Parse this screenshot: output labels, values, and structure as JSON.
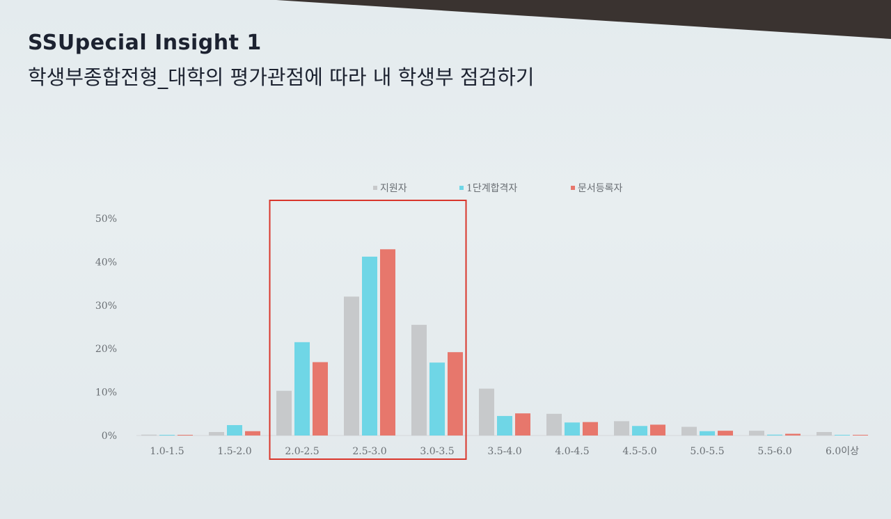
{
  "header": {
    "title": "SSUpecial Insight 1",
    "subtitle": "학생부종합전형_대학의 평가관점에 따라 내 학생부 점검하기"
  },
  "chart_data": {
    "type": "bar",
    "categories": [
      "1.0-1.5",
      "1.5-2.0",
      "2.0-2.5",
      "2.5-3.0",
      "3.0-3.5",
      "3.5-4.0",
      "4.0-4.5",
      "4.5-5.0",
      "5.0-5.5",
      "5.5-6.0",
      "6.0이상"
    ],
    "series": [
      {
        "name": "지원자",
        "color": "#c7c9cb",
        "values": [
          0.2,
          0.8,
          10.3,
          32.0,
          25.5,
          10.8,
          5.0,
          3.3,
          2.0,
          1.1,
          0.8
        ]
      },
      {
        "name": "1단계합격자",
        "color": "#6fd6e6",
        "values": [
          0.1,
          2.4,
          21.5,
          41.2,
          16.8,
          4.5,
          3.0,
          2.2,
          1.0,
          0.2,
          0.1
        ]
      },
      {
        "name": "문서등록자",
        "color": "#e7776c",
        "values": [
          0.0,
          1.0,
          16.9,
          42.9,
          19.2,
          5.1,
          3.1,
          2.5,
          1.1,
          0.4,
          0.0
        ]
      }
    ],
    "yticks": [
      "0%",
      "10%",
      "20%",
      "30%",
      "40%",
      "50%"
    ],
    "ylim": [
      0,
      50
    ],
    "grid": false,
    "legend_position": "top",
    "highlight": {
      "categories": [
        "2.0-2.5",
        "2.5-3.0",
        "3.0-3.5"
      ],
      "color": "#d9362b"
    }
  }
}
